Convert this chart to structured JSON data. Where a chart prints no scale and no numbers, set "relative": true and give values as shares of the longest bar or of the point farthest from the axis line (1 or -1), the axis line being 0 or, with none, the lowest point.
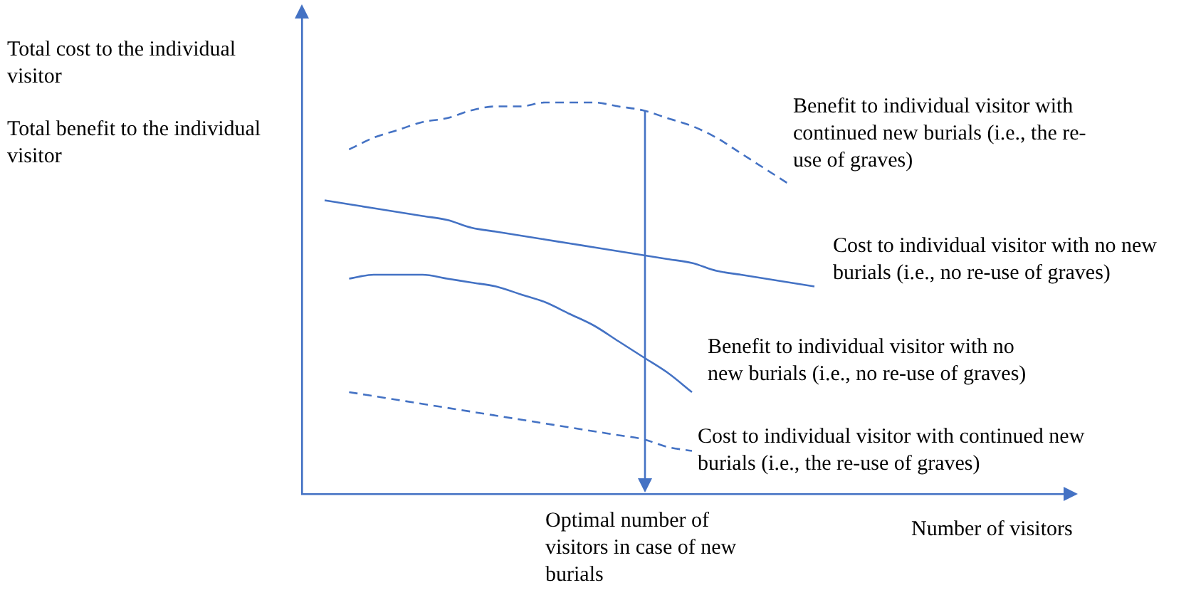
{
  "chart_data": {
    "type": "line",
    "relative": true,
    "ylabel": "Total cost to the individual visitor",
    "xlabel": "Number of visitors",
    "annotations": [
      "Total benefit to the individual visitor",
      "Optimal number of visitors in case of new burials"
    ],
    "legend": false,
    "grid": false,
    "tick_labels": false,
    "categories": [
      null,
      null,
      null,
      null,
      null,
      null,
      null,
      null,
      null,
      null,
      null,
      null,
      null,
      null,
      null,
      null,
      null,
      null,
      null,
      null,
      null
    ],
    "series": [
      {
        "name": "Benefit to individual visitor with continued new burials (i.e., the re-use of graves)",
        "color": "#4472c4",
        "line_style": "dashed",
        "values": [
          null,
          0.88,
          0.91,
          0.93,
          0.95,
          0.96,
          0.98,
          0.99,
          0.99,
          1,
          1,
          1,
          0.99,
          0.98,
          0.96,
          0.94,
          0.91,
          0.87,
          0.83,
          0.79,
          null
        ]
      },
      {
        "name": "Cost to individual visitor with no new burials (i.e., no re-use of graves)",
        "color": "#4472c4",
        "line_style": "solid",
        "values": [
          0.75,
          0.74,
          0.73,
          0.72,
          0.71,
          0.7,
          0.68,
          0.67,
          0.66,
          0.65,
          0.64,
          0.63,
          0.62,
          0.61,
          0.6,
          0.59,
          0.57,
          0.56,
          0.55,
          0.54,
          0.53
        ]
      },
      {
        "name": "Benefit to individual visitor with no new burials (i.e., no re-use of graves)",
        "color": "#4472c4",
        "line_style": "solid",
        "values": [
          null,
          0.55,
          0.56,
          0.56,
          0.56,
          0.55,
          0.54,
          0.53,
          0.51,
          0.49,
          0.46,
          0.43,
          0.39,
          0.35,
          0.31,
          0.26,
          null,
          null,
          null,
          null,
          null
        ]
      },
      {
        "name": "Cost to individual visitor with continued new burials (i.e., the re-use of graves)",
        "color": "#4472c4",
        "line_style": "dashed",
        "values": [
          null,
          0.26,
          0.25,
          0.24,
          0.23,
          0.22,
          0.21,
          0.2,
          0.19,
          0.18,
          0.17,
          0.16,
          0.15,
          0.14,
          0.12,
          0.11,
          null,
          null,
          null,
          null,
          null
        ]
      }
    ]
  }
}
